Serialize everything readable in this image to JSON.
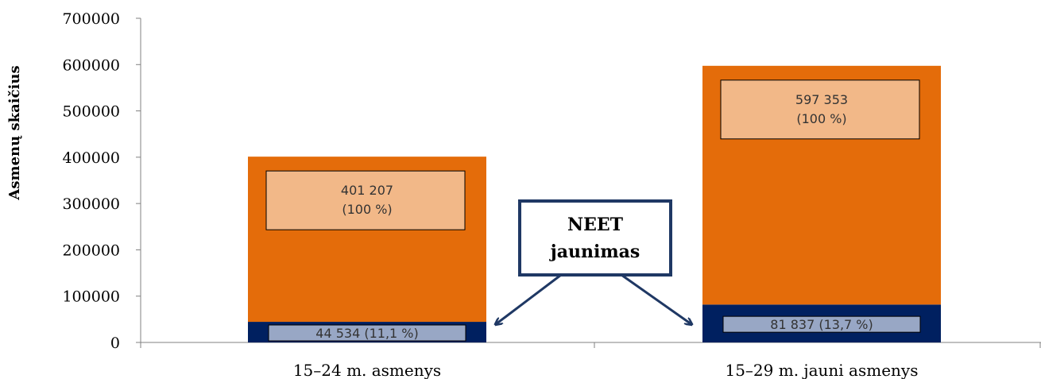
{
  "chart_data": {
    "type": "bar",
    "stacked": true,
    "ylabel": "Asmenų skaičius",
    "ylim": [
      0,
      700000
    ],
    "yticks": [
      "0",
      "100000",
      "200000",
      "300000",
      "400000",
      "500000",
      "600000",
      "700000"
    ],
    "categories": [
      "15–24 m. asmenys",
      "15–29 m. jauni asmenys"
    ],
    "series": [
      {
        "values": [
          44534,
          81837
        ],
        "labels": [
          "44 534 (11,1 %)",
          "81 837 (13,7 %)"
        ],
        "color": "#002060"
      },
      {
        "values": [
          356673,
          515516
        ],
        "color": "#E46C0A"
      }
    ],
    "totals": [
      401207,
      597353
    ],
    "total_labels": [
      [
        "401 207",
        "(100 %)"
      ],
      [
        "597 353",
        "(100 %)"
      ]
    ],
    "label_box_colors": {
      "top": "#F2B888",
      "bottom": "#98A7C5"
    },
    "callout": {
      "lines": [
        "NEET",
        "jaunimas"
      ],
      "border_color": "#1F3864"
    },
    "axis_color": "#808080",
    "grid": false
  }
}
